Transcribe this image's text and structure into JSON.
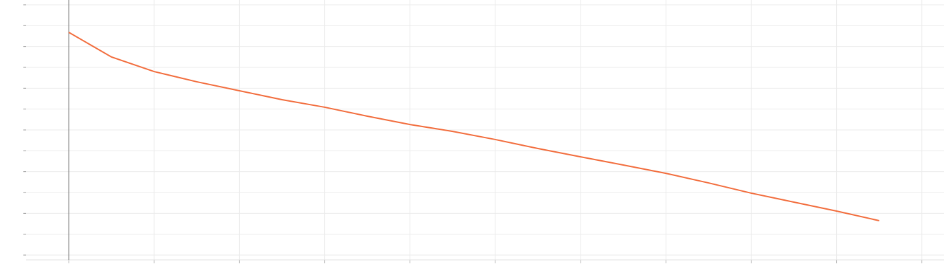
{
  "chart_data": {
    "type": "line",
    "x": [
      0,
      0.5,
      1,
      1.5,
      2,
      2.5,
      3,
      3.5,
      4,
      4.5,
      5,
      5.5,
      6,
      6.5,
      7,
      7.5,
      8,
      8.5,
      9,
      9.5
    ],
    "series": [
      {
        "color": "#f26d3d",
        "values": [
          10.68,
          9.5,
          8.8,
          8.31,
          7.88,
          7.45,
          7.09,
          6.66,
          6.26,
          5.93,
          5.54,
          5.11,
          4.71,
          4.32,
          3.92,
          3.46,
          2.97,
          2.54,
          2.11,
          1.65
        ]
      }
    ],
    "xlim": [
      -0.5,
      10.26
    ],
    "ylim": [
      -0.23,
      12.23
    ],
    "xticks": [
      0,
      1,
      2,
      3,
      4,
      5,
      6,
      7,
      8,
      9,
      10
    ],
    "yticks": [
      0,
      1,
      2,
      3,
      4,
      5,
      6,
      7,
      8,
      9,
      10,
      11,
      12
    ],
    "grid": true
  }
}
